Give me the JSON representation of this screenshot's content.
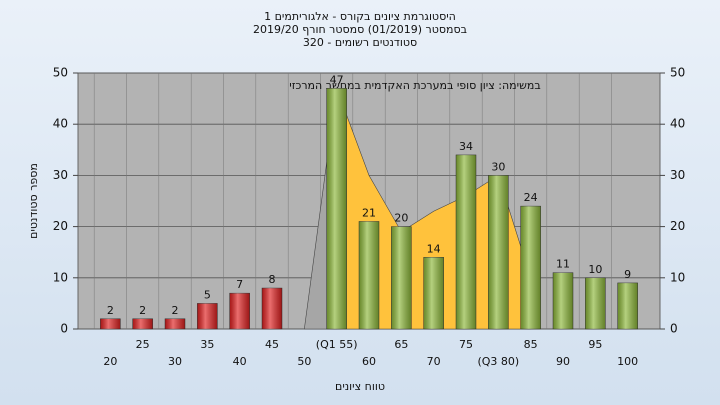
{
  "chart_data": {
    "type": "bar",
    "title": [
      "היסטוגרמת ציונים בקורס - אלגוריתמים 1",
      "בסמסטר (01/2019) סמסטר חורף 2019/20",
      "סטודנטים רשומים - 320"
    ],
    "annotation": "במשימה: ציון סופי במערכת האקדמית במחשב המרכזי",
    "xlabel": "טווח ציונים",
    "ylabel": "מספר סטודנטים",
    "categories": [
      "20",
      "25",
      "30",
      "35",
      "40",
      "45",
      "50",
      "(Q1 55)",
      "60",
      "65",
      "70",
      "75",
      "(Q3 80)",
      "85",
      "90",
      "95",
      "100"
    ],
    "values": [
      2,
      2,
      2,
      5,
      7,
      8,
      null,
      47,
      21,
      20,
      14,
      34,
      30,
      24,
      11,
      10,
      9
    ],
    "colors": [
      "#e02020",
      "#e02020",
      "#e02020",
      "#e02020",
      "#e02020",
      "#e02020",
      "#e02020",
      "#8db83a",
      "#8db83a",
      "#8db83a",
      "#8db83a",
      "#8db83a",
      "#8db83a",
      "#8db83a",
      "#8db83a",
      "#8db83a",
      "#8db83a"
    ],
    "areas": [
      {
        "color": "#a6a6a6",
        "values": [
          null,
          null,
          null,
          null,
          null,
          null,
          0,
          47,
          null,
          null,
          null,
          null,
          null,
          null,
          null,
          null,
          null
        ]
      },
      {
        "color": "#ffc23c",
        "values": [
          null,
          null,
          null,
          null,
          null,
          null,
          null,
          47,
          30,
          19,
          23,
          26,
          30,
          10,
          null,
          null,
          null
        ]
      }
    ],
    "ylim": [
      0,
      50
    ],
    "yticks": [
      0,
      10,
      20,
      30,
      40,
      50
    ],
    "y2lim": [
      0,
      50
    ],
    "y2ticks": [
      0,
      10,
      20,
      30,
      40,
      50
    ],
    "grid": true
  }
}
